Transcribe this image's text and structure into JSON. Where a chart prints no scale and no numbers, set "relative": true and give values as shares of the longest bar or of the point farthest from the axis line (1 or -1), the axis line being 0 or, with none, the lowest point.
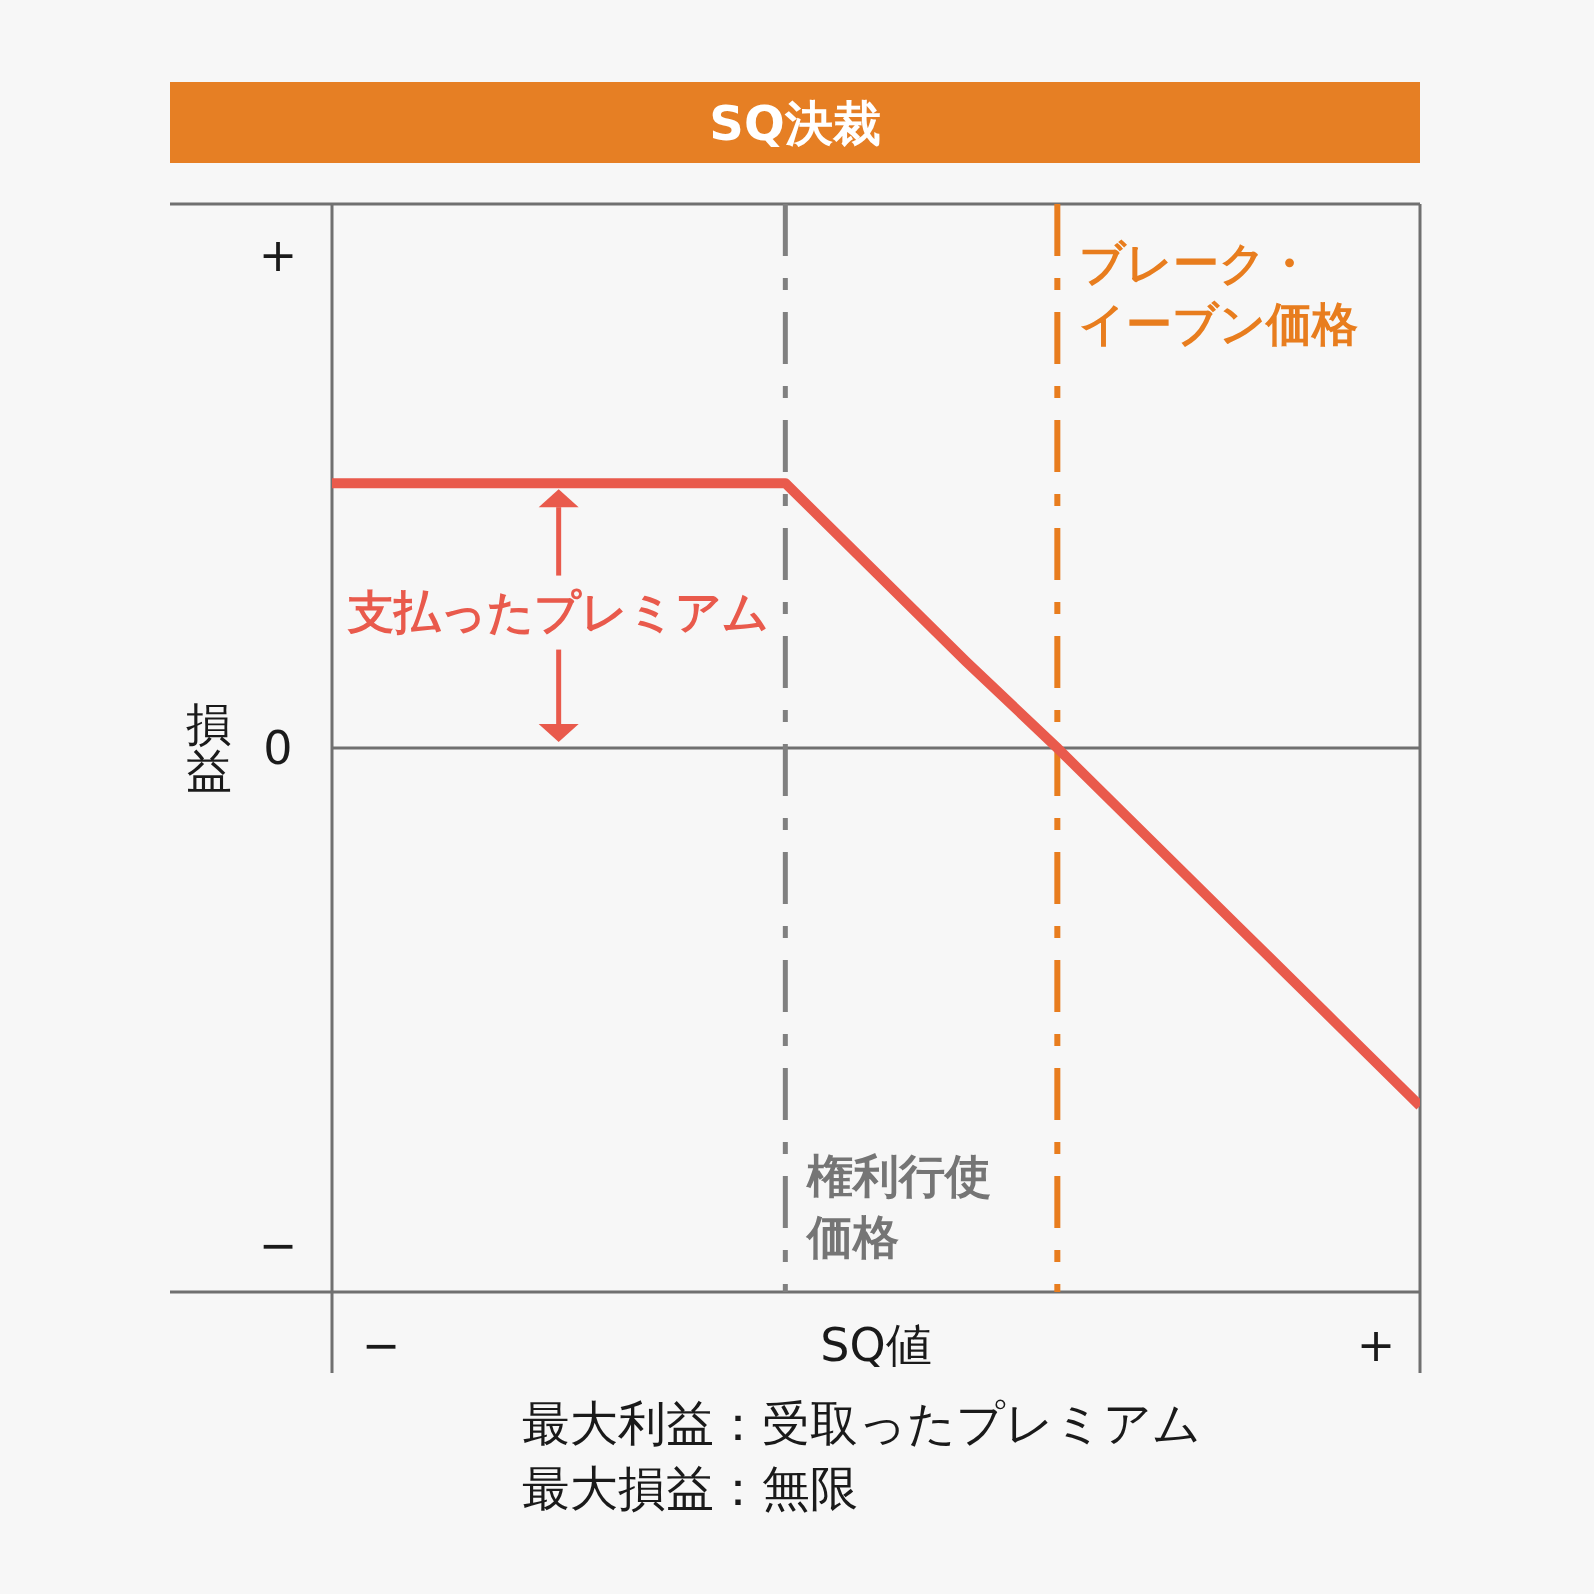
{
  "chart_data": {
    "type": "line",
    "title": "SQ決裁",
    "xlabel": "SQ値",
    "ylabel": "損益",
    "relative": true,
    "categories": [
      null,
      null,
      null,
      null,
      null,
      null,
      null,
      null,
      null,
      null,
      null,
      null,
      null
    ],
    "series": [
      {
        "color": "#e95a4c",
        "values": [
          0.74,
          0.74,
          0.74,
          0.74,
          0.74,
          0.74,
          0.49,
          0.24,
          0,
          -0.25,
          -0.5,
          -0.75,
          -1
        ]
      }
    ],
    "ref_lines": [
      {
        "axis": "y",
        "value": 0,
        "label": "0",
        "color": "#707070",
        "line_style": "solid"
      }
    ],
    "annotations": [
      "支払ったプレミアム",
      "権利行使価格",
      "ブレーク・イーブン価格",
      "+",
      "−",
      "−",
      "+",
      "最大利益：受取ったプレミアム",
      "最大損益：無限"
    ]
  }
}
